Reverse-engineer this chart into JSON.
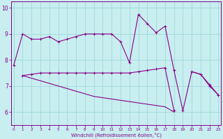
{
  "xlabel": "Windchill (Refroidissement éolien,°C)",
  "x_hours": [
    0,
    1,
    2,
    3,
    4,
    5,
    6,
    7,
    8,
    9,
    10,
    11,
    12,
    13,
    14,
    15,
    16,
    17,
    18,
    19,
    20,
    21,
    22,
    23
  ],
  "line1_y": [
    7.8,
    9.0,
    8.8,
    8.8,
    8.9,
    8.7,
    8.8,
    8.9,
    9.0,
    9.0,
    9.0,
    9.0,
    8.7,
    7.9,
    9.75,
    9.4,
    9.05,
    9.3,
    7.6,
    6.05,
    7.55,
    7.45,
    7.0,
    6.65
  ],
  "line2_y": [
    null,
    7.4,
    7.45,
    7.5,
    7.5,
    7.5,
    7.5,
    7.5,
    7.5,
    7.5,
    7.5,
    7.5,
    7.5,
    7.5,
    7.55,
    7.6,
    7.65,
    7.7,
    6.05,
    null,
    7.55,
    7.45,
    7.05,
    6.65
  ],
  "line3_y": [
    null,
    7.4,
    7.3,
    7.2,
    7.1,
    7.0,
    6.9,
    6.8,
    6.7,
    6.6,
    6.55,
    6.5,
    6.45,
    6.4,
    6.35,
    6.3,
    6.25,
    6.2,
    6.0,
    null,
    null,
    null,
    null,
    null
  ],
  "line_color": "#880088",
  "bg_color": "#c8eef0",
  "grid_color": "#a0d8dc",
  "ylim": [
    5.5,
    10.25
  ],
  "yticks": [
    6,
    7,
    8,
    9,
    10
  ],
  "xlim": [
    -0.3,
    23.3
  ],
  "xticks": [
    0,
    1,
    2,
    3,
    4,
    5,
    6,
    7,
    8,
    9,
    10,
    11,
    12,
    13,
    14,
    15,
    16,
    17,
    18,
    19,
    20,
    21,
    22,
    23
  ]
}
